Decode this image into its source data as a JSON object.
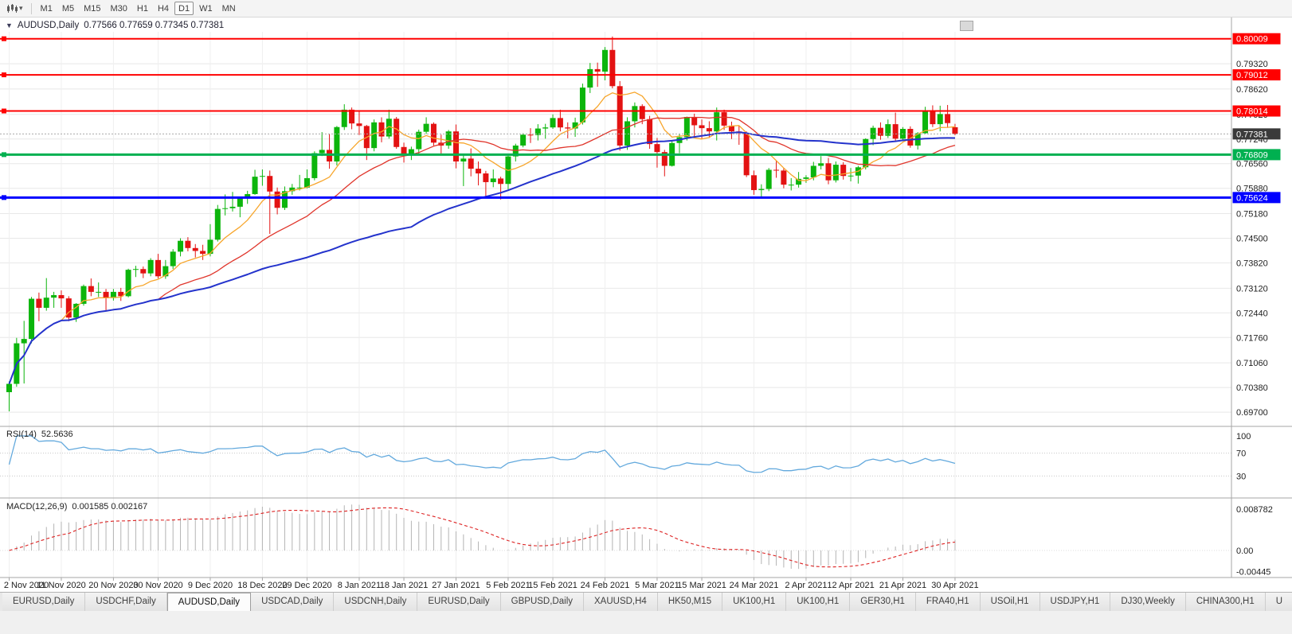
{
  "toolbar": {
    "timeframes": [
      {
        "label": "M1",
        "active": false
      },
      {
        "label": "M5",
        "active": false
      },
      {
        "label": "M15",
        "active": false
      },
      {
        "label": "M30",
        "active": false
      },
      {
        "label": "H1",
        "active": false
      },
      {
        "label": "H4",
        "active": false
      },
      {
        "label": "D1",
        "active": true
      },
      {
        "label": "W1",
        "active": false
      },
      {
        "label": "MN",
        "active": false
      }
    ]
  },
  "chart_header": {
    "collapse_glyph": "▼",
    "symbol_period": "AUDUSD,Daily",
    "ohlc_text": "0.77566 0.77659 0.77345 0.77381"
  },
  "indicators": {
    "rsi": {
      "name": "RSI(14)",
      "value_text": "52.5636",
      "axis_labels": [
        "100",
        "70",
        "30"
      ]
    },
    "macd": {
      "name": "MACD(12,26,9)",
      "value_text": "0.001585 0.002167",
      "axis_labels": [
        "0.008782",
        "0.00",
        "-0.00445"
      ]
    }
  },
  "tabs": [
    {
      "label": "EURUSD,Daily",
      "active": false
    },
    {
      "label": "USDCHF,Daily",
      "active": false
    },
    {
      "label": "AUDUSD,Daily",
      "active": true
    },
    {
      "label": "USDCAD,Daily",
      "active": false
    },
    {
      "label": "USDCNH,Daily",
      "active": false
    },
    {
      "label": "EURUSD,Daily",
      "active": false
    },
    {
      "label": "GBPUSD,Daily",
      "active": false
    },
    {
      "label": "XAUUSD,H4",
      "active": false
    },
    {
      "label": "HK50,M15",
      "active": false
    },
    {
      "label": "UK100,H1",
      "active": false
    },
    {
      "label": "UK100,H1",
      "active": false
    },
    {
      "label": "GER30,H1",
      "active": false
    },
    {
      "label": "FRA40,H1",
      "active": false
    },
    {
      "label": "USOil,H1",
      "active": false
    },
    {
      "label": "USDJPY,H1",
      "active": false
    },
    {
      "label": "DJ30,Weekly",
      "active": false
    },
    {
      "label": "CHINA300,H1",
      "active": false
    },
    {
      "label": "U",
      "active": false
    }
  ],
  "chart_data": [
    {
      "type": "candlestick",
      "symbol": "AUDUSD",
      "period": "Daily",
      "ylim": [
        0.6935,
        0.802
      ],
      "y_ticks": [
        0.7932,
        0.7862,
        0.7792,
        0.7724,
        0.7656,
        0.7588,
        0.7518,
        0.745,
        0.7382,
        0.7312,
        0.7244,
        0.7176,
        0.7106,
        0.7038,
        0.697
      ],
      "x_labels": [
        "2 Nov 2020",
        "11 Nov 2020",
        "20 Nov 2020",
        "30 Nov 2020",
        "9 Dec 2020",
        "18 Dec 2020",
        "29 Dec 2020",
        "8 Jan 2021",
        "18 Jan 2021",
        "27 Jan 2021",
        "5 Feb 2021",
        "15 Feb 2021",
        "24 Feb 2021",
        "5 Mar 2021",
        "15 Mar 2021",
        "24 Mar 2021",
        "2 Apr 2021",
        "12 Apr 2021",
        "21 Apr 2021",
        "30 Apr 2021"
      ],
      "x_label_indices": [
        0,
        7,
        14,
        20,
        27,
        34,
        40,
        47,
        53,
        60,
        67,
        73,
        80,
        87,
        93,
        100,
        107,
        113,
        120,
        127
      ],
      "grid_color": "#e8e8e8",
      "up_color": "#0cb50c",
      "down_color": "#e31212",
      "hlines": [
        {
          "price": 0.80009,
          "label": "0.80009",
          "color": "#ff0000",
          "width": 2
        },
        {
          "price": 0.79012,
          "label": "0.79012",
          "color": "#ff0000",
          "width": 2
        },
        {
          "price": 0.78014,
          "label": "0.78014",
          "color": "#ff0000",
          "width": 2
        },
        {
          "price": 0.76809,
          "label": "0.76809",
          "color": "#00b050",
          "width": 3
        },
        {
          "price": 0.75624,
          "label": "0.75624",
          "color": "#0000ff",
          "width": 3
        }
      ],
      "current_price": {
        "value": 0.77381,
        "label": "0.77381",
        "badge_color": "#3a3a3a"
      },
      "moving_averages": [
        {
          "period": 8,
          "color": "#f7a62c",
          "width": 1.3
        },
        {
          "period": 21,
          "color": "#e0352b",
          "width": 1.3
        },
        {
          "period": 55,
          "color": "#2433cc",
          "width": 2
        }
      ],
      "candles": [
        [
          "2020.11.02",
          0.7025,
          0.7055,
          0.6972,
          0.7048
        ],
        [
          "2020.11.03",
          0.7048,
          0.7175,
          0.704,
          0.716
        ],
        [
          "2020.11.04",
          0.716,
          0.7222,
          0.7049,
          0.7172
        ],
        [
          "2020.11.05",
          0.7172,
          0.7288,
          0.716,
          0.7283
        ],
        [
          "2020.11.06",
          0.7283,
          0.73,
          0.7221,
          0.7258
        ],
        [
          "2020.11.09",
          0.7258,
          0.734,
          0.725,
          0.7286
        ],
        [
          "2020.11.10",
          0.7286,
          0.7302,
          0.7258,
          0.7293
        ],
        [
          "2020.11.11",
          0.7293,
          0.7306,
          0.7258,
          0.7284
        ],
        [
          "2020.11.12",
          0.7284,
          0.729,
          0.7221,
          0.7231
        ],
        [
          "2020.11.13",
          0.7231,
          0.7271,
          0.7219,
          0.7269
        ],
        [
          "2020.11.16",
          0.7269,
          0.7322,
          0.7264,
          0.7318
        ],
        [
          "2020.11.17",
          0.7318,
          0.7339,
          0.729,
          0.7302
        ],
        [
          "2020.11.18",
          0.7302,
          0.7328,
          0.7288,
          0.7302
        ],
        [
          "2020.11.19",
          0.7302,
          0.731,
          0.725,
          0.7285
        ],
        [
          "2020.11.20",
          0.7285,
          0.731,
          0.7278,
          0.7302
        ],
        [
          "2020.11.23",
          0.7302,
          0.7313,
          0.7277,
          0.729
        ],
        [
          "2020.11.24",
          0.729,
          0.7366,
          0.7287,
          0.7363
        ],
        [
          "2020.11.25",
          0.7363,
          0.7374,
          0.7343,
          0.7365
        ],
        [
          "2020.11.26",
          0.7365,
          0.7372,
          0.734,
          0.7353
        ],
        [
          "2020.11.27",
          0.7353,
          0.7395,
          0.7345,
          0.739
        ],
        [
          "2020.11.30",
          0.739,
          0.7407,
          0.7339,
          0.7345
        ],
        [
          "2020.12.01",
          0.7345,
          0.739,
          0.7338,
          0.7373
        ],
        [
          "2020.12.02",
          0.7373,
          0.742,
          0.7365,
          0.7413
        ],
        [
          "2020.12.03",
          0.7413,
          0.745,
          0.74,
          0.7443
        ],
        [
          "2020.12.04",
          0.7443,
          0.7453,
          0.7414,
          0.7423
        ],
        [
          "2020.12.07",
          0.7423,
          0.7434,
          0.7397,
          0.7415
        ],
        [
          "2020.12.08",
          0.7415,
          0.7432,
          0.739,
          0.7407
        ],
        [
          "2020.12.09",
          0.7407,
          0.7489,
          0.74,
          0.7446
        ],
        [
          "2020.12.10",
          0.7446,
          0.7542,
          0.7441,
          0.7531
        ],
        [
          "2020.12.11",
          0.7531,
          0.7571,
          0.7513,
          0.7533
        ],
        [
          "2020.12.14",
          0.7533,
          0.7578,
          0.7524,
          0.7537
        ],
        [
          "2020.12.15",
          0.7537,
          0.7563,
          0.7508,
          0.756
        ],
        [
          "2020.12.16",
          0.756,
          0.7581,
          0.7545,
          0.7572
        ],
        [
          "2020.12.17",
          0.7572,
          0.7639,
          0.757,
          0.762
        ],
        [
          "2020.12.18",
          0.762,
          0.764,
          0.7595,
          0.7622
        ],
        [
          "2020.12.21",
          0.7622,
          0.7637,
          0.7462,
          0.7579
        ],
        [
          "2020.12.22",
          0.7579,
          0.759,
          0.7516,
          0.7534
        ],
        [
          "2020.12.23",
          0.7534,
          0.7593,
          0.7528,
          0.758
        ],
        [
          "2020.12.24",
          0.758,
          0.76,
          0.757,
          0.759
        ],
        [
          "2020.12.28",
          0.759,
          0.7625,
          0.7582,
          0.759
        ],
        [
          "2020.12.29",
          0.759,
          0.764,
          0.7588,
          0.7616
        ],
        [
          "2020.12.30",
          0.7616,
          0.769,
          0.761,
          0.7685
        ],
        [
          "2020.12.31",
          0.7685,
          0.7743,
          0.7677,
          0.7694
        ],
        [
          "2021.01.04",
          0.7694,
          0.7738,
          0.7642,
          0.7662
        ],
        [
          "2021.01.05",
          0.7662,
          0.776,
          0.7651,
          0.7757
        ],
        [
          "2021.01.06",
          0.7757,
          0.782,
          0.7749,
          0.7805
        ],
        [
          "2021.01.07",
          0.7805,
          0.7811,
          0.7751,
          0.7767
        ],
        [
          "2021.01.08",
          0.7767,
          0.78,
          0.7735,
          0.776
        ],
        [
          "2021.01.11",
          0.776,
          0.7763,
          0.7666,
          0.7699
        ],
        [
          "2021.01.12",
          0.7699,
          0.7778,
          0.769,
          0.777
        ],
        [
          "2021.01.13",
          0.777,
          0.7784,
          0.7715,
          0.7731
        ],
        [
          "2021.01.14",
          0.7731,
          0.7805,
          0.7725,
          0.778
        ],
        [
          "2021.01.15",
          0.778,
          0.7785,
          0.7697,
          0.7702
        ],
        [
          "2021.01.18",
          0.7702,
          0.7714,
          0.7659,
          0.7679
        ],
        [
          "2021.01.19",
          0.7679,
          0.7703,
          0.7666,
          0.7696
        ],
        [
          "2021.01.20",
          0.7696,
          0.775,
          0.7684,
          0.7744
        ],
        [
          "2021.01.21",
          0.7744,
          0.7784,
          0.7738,
          0.7766
        ],
        [
          "2021.01.22",
          0.7766,
          0.777,
          0.7706,
          0.7714
        ],
        [
          "2021.01.25",
          0.7714,
          0.7736,
          0.7682,
          0.7706
        ],
        [
          "2021.01.26",
          0.7706,
          0.7749,
          0.7697,
          0.7745
        ],
        [
          "2021.01.27",
          0.7745,
          0.7764,
          0.7643,
          0.7662
        ],
        [
          "2021.01.28",
          0.7662,
          0.7681,
          0.7594,
          0.767
        ],
        [
          "2021.01.29",
          0.767,
          0.7698,
          0.7621,
          0.7642
        ],
        [
          "2021.02.01",
          0.7642,
          0.7662,
          0.7596,
          0.7629
        ],
        [
          "2021.02.02",
          0.7629,
          0.7636,
          0.7563,
          0.7605
        ],
        [
          "2021.02.03",
          0.7605,
          0.764,
          0.7591,
          0.7615
        ],
        [
          "2021.02.04",
          0.7615,
          0.762,
          0.7557,
          0.76
        ],
        [
          "2021.02.05",
          0.76,
          0.7681,
          0.7585,
          0.7676
        ],
        [
          "2021.02.08",
          0.7676,
          0.7711,
          0.7662,
          0.7706
        ],
        [
          "2021.02.09",
          0.7706,
          0.774,
          0.7701,
          0.7736
        ],
        [
          "2021.02.10",
          0.7736,
          0.7754,
          0.7713,
          0.7735
        ],
        [
          "2021.02.11",
          0.7735,
          0.7765,
          0.772,
          0.7753
        ],
        [
          "2021.02.12",
          0.7753,
          0.7766,
          0.7725,
          0.7756
        ],
        [
          "2021.02.15",
          0.7756,
          0.7792,
          0.7752,
          0.7782
        ],
        [
          "2021.02.16",
          0.7782,
          0.7805,
          0.7745,
          0.7756
        ],
        [
          "2021.02.17",
          0.7756,
          0.777,
          0.7726,
          0.7753
        ],
        [
          "2021.02.18",
          0.7753,
          0.7783,
          0.773,
          0.777
        ],
        [
          "2021.02.19",
          0.777,
          0.7877,
          0.7764,
          0.7866
        ],
        [
          "2021.02.22",
          0.7866,
          0.7934,
          0.7851,
          0.7917
        ],
        [
          "2021.02.23",
          0.7917,
          0.7935,
          0.7868,
          0.791
        ],
        [
          "2021.02.24",
          0.791,
          0.7978,
          0.7886,
          0.797
        ],
        [
          "2021.02.25",
          0.797,
          0.8007,
          0.7864,
          0.787
        ],
        [
          "2021.02.26",
          0.787,
          0.7884,
          0.7692,
          0.7706
        ],
        [
          "2021.03.01",
          0.7706,
          0.7784,
          0.7694,
          0.7773
        ],
        [
          "2021.03.02",
          0.7773,
          0.7825,
          0.7756,
          0.7815
        ],
        [
          "2021.03.03",
          0.7815,
          0.782,
          0.7765,
          0.7779
        ],
        [
          "2021.03.04",
          0.7779,
          0.7788,
          0.7697,
          0.771
        ],
        [
          "2021.03.05",
          0.771,
          0.7727,
          0.7645,
          0.7688
        ],
        [
          "2021.03.08",
          0.7688,
          0.7694,
          0.7621,
          0.765
        ],
        [
          "2021.03.09",
          0.765,
          0.772,
          0.7648,
          0.7713
        ],
        [
          "2021.03.10",
          0.7713,
          0.7738,
          0.7685,
          0.7729
        ],
        [
          "2021.03.11",
          0.7729,
          0.7786,
          0.772,
          0.7785
        ],
        [
          "2021.03.12",
          0.7785,
          0.7794,
          0.773,
          0.7762
        ],
        [
          "2021.03.15",
          0.7762,
          0.7778,
          0.7725,
          0.7754
        ],
        [
          "2021.03.16",
          0.7754,
          0.7773,
          0.7727,
          0.7745
        ],
        [
          "2021.03.17",
          0.7745,
          0.7811,
          0.772,
          0.7798
        ],
        [
          "2021.03.18",
          0.7798,
          0.7805,
          0.7749,
          0.7761
        ],
        [
          "2021.03.19",
          0.7761,
          0.7772,
          0.7724,
          0.7745
        ],
        [
          "2021.03.22",
          0.7745,
          0.776,
          0.7708,
          0.774
        ],
        [
          "2021.03.23",
          0.774,
          0.7745,
          0.7619,
          0.7624
        ],
        [
          "2021.03.24",
          0.7624,
          0.7637,
          0.757,
          0.7583
        ],
        [
          "2021.03.25",
          0.7583,
          0.7599,
          0.7562,
          0.7586
        ],
        [
          "2021.03.26",
          0.7586,
          0.7644,
          0.758,
          0.7639
        ],
        [
          "2021.03.29",
          0.7639,
          0.7664,
          0.7617,
          0.7637
        ],
        [
          "2021.03.30",
          0.7637,
          0.7644,
          0.7588,
          0.7598
        ],
        [
          "2021.03.31",
          0.7598,
          0.7616,
          0.7582,
          0.7598
        ],
        [
          "2021.04.01",
          0.7598,
          0.7633,
          0.759,
          0.7614
        ],
        [
          "2021.04.02",
          0.7614,
          0.7624,
          0.7603,
          0.7618
        ],
        [
          "2021.04.05",
          0.7618,
          0.7661,
          0.761,
          0.765
        ],
        [
          "2021.04.06",
          0.765,
          0.7677,
          0.764,
          0.7657
        ],
        [
          "2021.04.07",
          0.7657,
          0.7672,
          0.7599,
          0.761
        ],
        [
          "2021.04.08",
          0.761,
          0.7662,
          0.7604,
          0.7653
        ],
        [
          "2021.04.09",
          0.7653,
          0.766,
          0.7612,
          0.7622
        ],
        [
          "2021.04.12",
          0.7622,
          0.7644,
          0.7607,
          0.7623
        ],
        [
          "2021.04.13",
          0.7623,
          0.765,
          0.7601,
          0.7646
        ],
        [
          "2021.04.14",
          0.7646,
          0.7726,
          0.764,
          0.7724
        ],
        [
          "2021.04.15",
          0.7724,
          0.7761,
          0.7707,
          0.7755
        ],
        [
          "2021.04.16",
          0.7755,
          0.777,
          0.7722,
          0.7733
        ],
        [
          "2021.04.19",
          0.7733,
          0.7778,
          0.7727,
          0.7765
        ],
        [
          "2021.04.20",
          0.7765,
          0.7797,
          0.7717,
          0.7725
        ],
        [
          "2021.04.21",
          0.7725,
          0.7757,
          0.7718,
          0.7752
        ],
        [
          "2021.04.22",
          0.7752,
          0.7759,
          0.77,
          0.7706
        ],
        [
          "2021.04.23",
          0.7706,
          0.7743,
          0.7695,
          0.774
        ],
        [
          "2021.04.26",
          0.774,
          0.7813,
          0.7738,
          0.7801
        ],
        [
          "2021.04.27",
          0.7801,
          0.7817,
          0.7757,
          0.7765
        ],
        [
          "2021.04.28",
          0.7765,
          0.7816,
          0.7745,
          0.7793
        ],
        [
          "2021.04.29",
          0.7793,
          0.7818,
          0.7755,
          0.7768
        ],
        [
          "2021.04.30",
          0.77566,
          0.77659,
          0.77345,
          0.77381
        ]
      ]
    },
    {
      "type": "line",
      "name": "RSI",
      "period": 14,
      "current_value": 52.5636,
      "range": [
        0,
        100
      ],
      "levels": [
        70,
        30
      ],
      "color": "#63a9dd"
    },
    {
      "type": "macd",
      "fast": 12,
      "slow": 26,
      "signal": 9,
      "current_macd": 0.001585,
      "current_signal": 0.002167,
      "ylim": [
        -0.00445,
        0.008782
      ],
      "histogram_color": "#b4b4b4",
      "signal_color": "#dd2222"
    }
  ]
}
